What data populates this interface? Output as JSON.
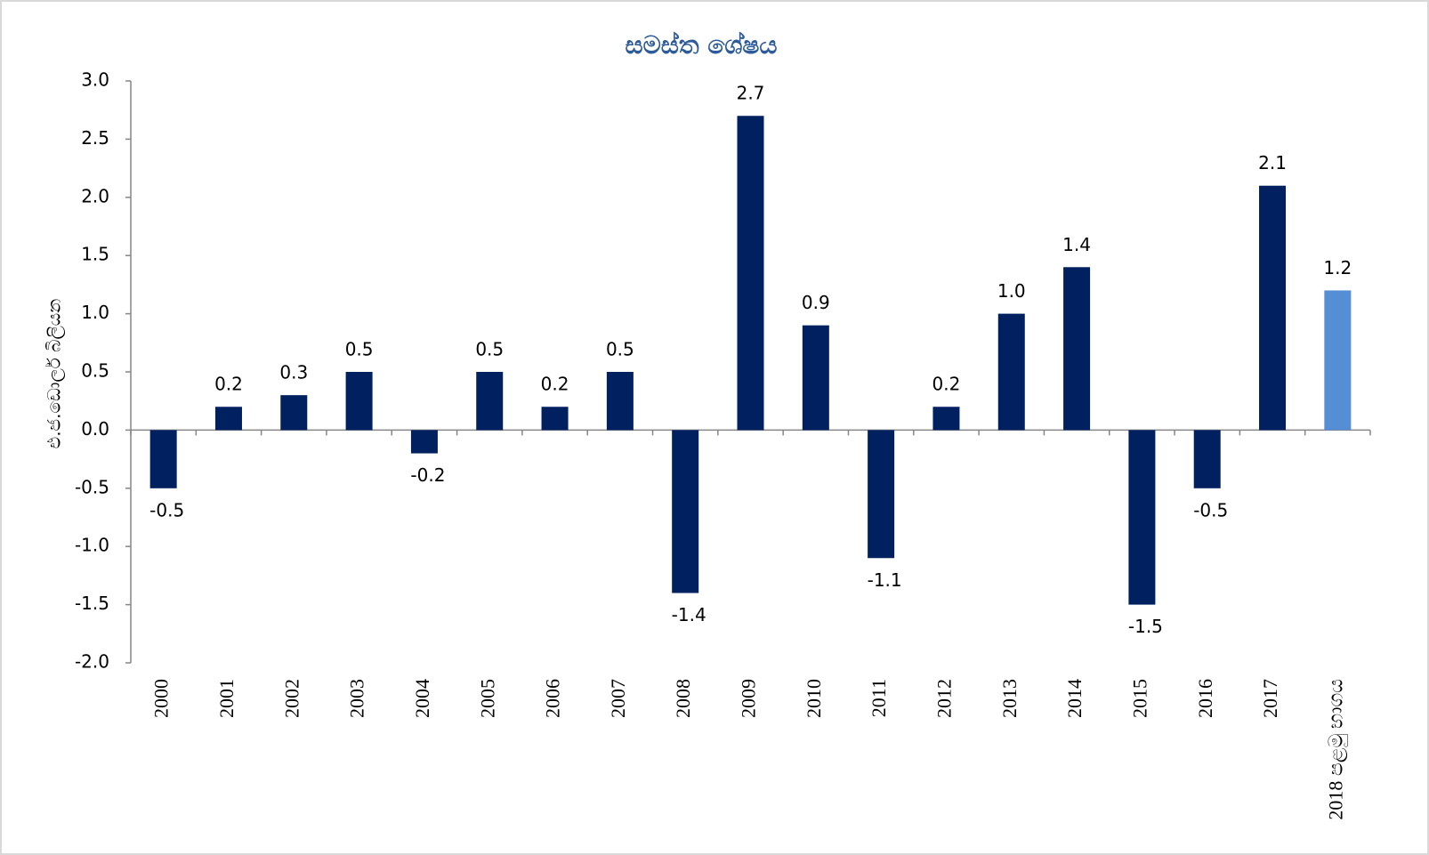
{
  "chart_data": {
    "type": "bar",
    "title": "සමස්ත ශේෂය",
    "y_label": "එ.ජ.ඩොලර් බිලියන",
    "categories": [
      "2000",
      "2001",
      "2002",
      "2003",
      "2004",
      "2005",
      "2006",
      "2007",
      "2008",
      "2009",
      "2010",
      "2011",
      "2012",
      "2013",
      "2014",
      "2015",
      "2016",
      "2017",
      "2018 පළමු භාගය"
    ],
    "values": [
      -0.5,
      0.2,
      0.3,
      0.5,
      -0.2,
      0.5,
      0.2,
      0.5,
      -1.4,
      2.7,
      0.9,
      -1.1,
      0.2,
      1.0,
      1.4,
      -1.5,
      -0.5,
      2.1,
      1.2
    ],
    "value_labels": [
      "-0.5",
      "0.2",
      "0.3",
      "0.5",
      "-0.2",
      "0.5",
      "0.2",
      "0.5",
      "-1.4",
      "2.7",
      "0.9",
      "-1.1",
      "0.2",
      "1.0",
      "1.4",
      "-1.5",
      "-0.5",
      "2.1",
      "1.2"
    ],
    "colors": [
      "#002060",
      "#002060",
      "#002060",
      "#002060",
      "#002060",
      "#002060",
      "#002060",
      "#002060",
      "#002060",
      "#002060",
      "#002060",
      "#002060",
      "#002060",
      "#002060",
      "#002060",
      "#002060",
      "#002060",
      "#002060",
      "#558ed5"
    ],
    "ylim": [
      -2.0,
      3.0
    ],
    "yticks": [
      {
        "value": -2.0,
        "label": "-2.0"
      },
      -1.5,
      {
        "value": -1.0,
        "label": "-1.0"
      },
      -0.5,
      {
        "value": 0.0,
        "label": "0.0"
      },
      0.5,
      {
        "value": 1.0,
        "label": "1.0"
      },
      1.5,
      {
        "value": 2.0,
        "label": "2.0"
      },
      2.5,
      {
        "value": 3.0,
        "label": "3.0"
      }
    ],
    "grid": false
  }
}
